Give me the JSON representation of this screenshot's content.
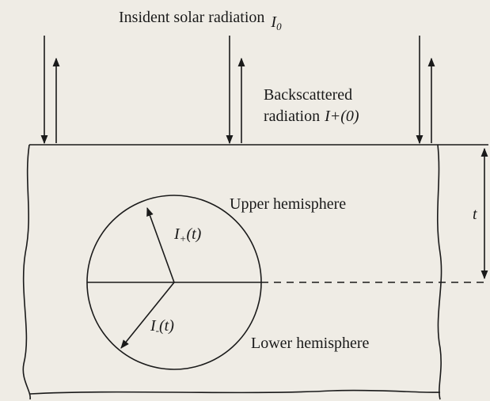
{
  "title": {
    "text": "Insident solar radiation",
    "symbol": "I",
    "subscript": "0"
  },
  "backscattered": {
    "line1": "Backscattered",
    "line2": "radiation",
    "symbol": "I+(0)"
  },
  "upper": {
    "label": "Upper hemisphere",
    "symbol": "I",
    "subscript": "+",
    "rest": "(t)"
  },
  "lower": {
    "label": "Lower hemisphere",
    "symbol": "I",
    "subscript": "-",
    "rest": "(t)"
  },
  "depth": "t"
}
